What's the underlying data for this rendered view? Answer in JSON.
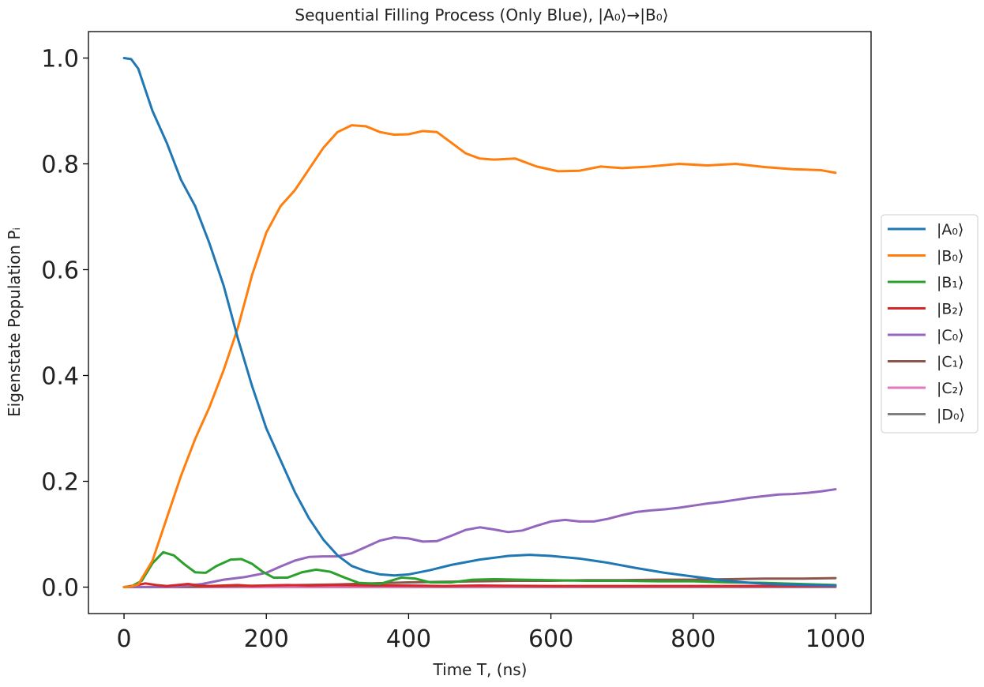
{
  "chart_data": {
    "type": "line",
    "title": "Sequential Filling Process (Only Blue), |A₀⟩→|B₀⟩",
    "xlabel": "Time T, (ns)",
    "ylabel": "Eigenstate Population Pᵢ",
    "xlim": [
      -50,
      1050
    ],
    "ylim": [
      -0.05,
      1.05
    ],
    "xticks": [
      0,
      200,
      400,
      600,
      800,
      1000
    ],
    "yticks": [
      0.0,
      0.2,
      0.4,
      0.6,
      0.8,
      1.0
    ],
    "xtick_labels": [
      "0",
      "200",
      "400",
      "600",
      "800",
      "1000"
    ],
    "ytick_labels": [
      "0.0",
      "0.2",
      "0.4",
      "0.6",
      "0.8",
      "1.0"
    ],
    "grid": false,
    "legend_position": "right, outside plot area",
    "series": [
      {
        "name": "|A₀⟩",
        "color": "#1f77b4",
        "points": [
          [
            0,
            1.0
          ],
          [
            10,
            0.998
          ],
          [
            20,
            0.98
          ],
          [
            40,
            0.9
          ],
          [
            60,
            0.84
          ],
          [
            80,
            0.77
          ],
          [
            100,
            0.72
          ],
          [
            120,
            0.65
          ],
          [
            140,
            0.57
          ],
          [
            160,
            0.47
          ],
          [
            180,
            0.38
          ],
          [
            200,
            0.3
          ],
          [
            220,
            0.24
          ],
          [
            240,
            0.18
          ],
          [
            260,
            0.13
          ],
          [
            280,
            0.09
          ],
          [
            300,
            0.06
          ],
          [
            320,
            0.04
          ],
          [
            340,
            0.03
          ],
          [
            360,
            0.024
          ],
          [
            380,
            0.022
          ],
          [
            400,
            0.024
          ],
          [
            430,
            0.032
          ],
          [
            460,
            0.042
          ],
          [
            500,
            0.052
          ],
          [
            540,
            0.059
          ],
          [
            570,
            0.061
          ],
          [
            600,
            0.059
          ],
          [
            640,
            0.054
          ],
          [
            680,
            0.046
          ],
          [
            720,
            0.036
          ],
          [
            760,
            0.027
          ],
          [
            800,
            0.02
          ],
          [
            840,
            0.013
          ],
          [
            880,
            0.008
          ],
          [
            920,
            0.005
          ],
          [
            960,
            0.004
          ],
          [
            1000,
            0.003
          ]
        ]
      },
      {
        "name": "|B₀⟩",
        "color": "#ff7f0e",
        "points": [
          [
            0,
            0.0
          ],
          [
            10,
            0.001
          ],
          [
            20,
            0.005
          ],
          [
            40,
            0.05
          ],
          [
            60,
            0.13
          ],
          [
            80,
            0.21
          ],
          [
            100,
            0.28
          ],
          [
            120,
            0.34
          ],
          [
            140,
            0.41
          ],
          [
            160,
            0.49
          ],
          [
            180,
            0.59
          ],
          [
            200,
            0.67
          ],
          [
            220,
            0.72
          ],
          [
            240,
            0.75
          ],
          [
            260,
            0.79
          ],
          [
            280,
            0.83
          ],
          [
            300,
            0.86
          ],
          [
            320,
            0.873
          ],
          [
            340,
            0.871
          ],
          [
            360,
            0.86
          ],
          [
            380,
            0.855
          ],
          [
            400,
            0.856
          ],
          [
            420,
            0.862
          ],
          [
            440,
            0.86
          ],
          [
            460,
            0.84
          ],
          [
            480,
            0.82
          ],
          [
            500,
            0.81
          ],
          [
            520,
            0.808
          ],
          [
            550,
            0.81
          ],
          [
            580,
            0.795
          ],
          [
            610,
            0.786
          ],
          [
            640,
            0.787
          ],
          [
            670,
            0.795
          ],
          [
            700,
            0.792
          ],
          [
            740,
            0.795
          ],
          [
            780,
            0.8
          ],
          [
            820,
            0.797
          ],
          [
            860,
            0.8
          ],
          [
            900,
            0.794
          ],
          [
            940,
            0.79
          ],
          [
            980,
            0.788
          ],
          [
            1000,
            0.783
          ]
        ]
      },
      {
        "name": "|B₁⟩",
        "color": "#2ca02c",
        "points": [
          [
            0,
            0.0
          ],
          [
            10,
            0.001
          ],
          [
            25,
            0.012
          ],
          [
            40,
            0.045
          ],
          [
            55,
            0.066
          ],
          [
            70,
            0.06
          ],
          [
            85,
            0.043
          ],
          [
            100,
            0.028
          ],
          [
            115,
            0.027
          ],
          [
            130,
            0.04
          ],
          [
            150,
            0.052
          ],
          [
            165,
            0.053
          ],
          [
            180,
            0.044
          ],
          [
            195,
            0.029
          ],
          [
            210,
            0.018
          ],
          [
            230,
            0.018
          ],
          [
            250,
            0.028
          ],
          [
            270,
            0.033
          ],
          [
            290,
            0.029
          ],
          [
            310,
            0.018
          ],
          [
            330,
            0.008
          ],
          [
            360,
            0.006
          ],
          [
            390,
            0.018
          ],
          [
            410,
            0.016
          ],
          [
            430,
            0.009
          ],
          [
            460,
            0.009
          ],
          [
            490,
            0.014
          ],
          [
            520,
            0.015
          ],
          [
            560,
            0.014
          ],
          [
            600,
            0.013
          ],
          [
            650,
            0.012
          ],
          [
            700,
            0.012
          ],
          [
            750,
            0.011
          ],
          [
            800,
            0.011
          ],
          [
            850,
            0.009
          ],
          [
            900,
            0.008
          ],
          [
            950,
            0.006
          ],
          [
            1000,
            0.004
          ]
        ]
      },
      {
        "name": "|B₂⟩",
        "color": "#d62728",
        "points": [
          [
            0,
            0.0
          ],
          [
            15,
            0.003
          ],
          [
            30,
            0.007
          ],
          [
            45,
            0.004
          ],
          [
            60,
            0.002
          ],
          [
            75,
            0.004
          ],
          [
            90,
            0.006
          ],
          [
            105,
            0.003
          ],
          [
            120,
            0.002
          ],
          [
            140,
            0.003
          ],
          [
            160,
            0.004
          ],
          [
            180,
            0.002
          ],
          [
            200,
            0.003
          ],
          [
            230,
            0.004
          ],
          [
            260,
            0.003
          ],
          [
            300,
            0.004
          ],
          [
            350,
            0.003
          ],
          [
            400,
            0.003
          ],
          [
            450,
            0.002
          ],
          [
            500,
            0.003
          ],
          [
            600,
            0.002
          ],
          [
            700,
            0.002
          ],
          [
            800,
            0.002
          ],
          [
            900,
            0.002
          ],
          [
            1000,
            0.002
          ]
        ]
      },
      {
        "name": "|C₀⟩",
        "color": "#9467bd",
        "points": [
          [
            0,
            0.0
          ],
          [
            60,
            0.0
          ],
          [
            90,
            0.003
          ],
          [
            110,
            0.006
          ],
          [
            140,
            0.014
          ],
          [
            170,
            0.019
          ],
          [
            200,
            0.027
          ],
          [
            220,
            0.039
          ],
          [
            240,
            0.05
          ],
          [
            260,
            0.057
          ],
          [
            280,
            0.058
          ],
          [
            300,
            0.058
          ],
          [
            320,
            0.064
          ],
          [
            340,
            0.076
          ],
          [
            360,
            0.088
          ],
          [
            380,
            0.094
          ],
          [
            400,
            0.092
          ],
          [
            420,
            0.086
          ],
          [
            440,
            0.087
          ],
          [
            460,
            0.097
          ],
          [
            480,
            0.108
          ],
          [
            500,
            0.113
          ],
          [
            520,
            0.109
          ],
          [
            540,
            0.104
          ],
          [
            560,
            0.107
          ],
          [
            580,
            0.116
          ],
          [
            600,
            0.124
          ],
          [
            620,
            0.127
          ],
          [
            640,
            0.124
          ],
          [
            660,
            0.124
          ],
          [
            680,
            0.129
          ],
          [
            700,
            0.136
          ],
          [
            720,
            0.142
          ],
          [
            740,
            0.145
          ],
          [
            760,
            0.147
          ],
          [
            780,
            0.15
          ],
          [
            800,
            0.154
          ],
          [
            820,
            0.158
          ],
          [
            840,
            0.161
          ],
          [
            860,
            0.165
          ],
          [
            880,
            0.169
          ],
          [
            900,
            0.172
          ],
          [
            920,
            0.175
          ],
          [
            940,
            0.176
          ],
          [
            960,
            0.178
          ],
          [
            980,
            0.181
          ],
          [
            1000,
            0.185
          ]
        ]
      },
      {
        "name": "|C₁⟩",
        "color": "#8c564b",
        "points": [
          [
            0,
            0.0
          ],
          [
            100,
            0.001
          ],
          [
            200,
            0.003
          ],
          [
            300,
            0.005
          ],
          [
            350,
            0.007
          ],
          [
            400,
            0.009
          ],
          [
            450,
            0.01
          ],
          [
            500,
            0.011
          ],
          [
            550,
            0.012
          ],
          [
            600,
            0.012
          ],
          [
            650,
            0.013
          ],
          [
            700,
            0.013
          ],
          [
            750,
            0.014
          ],
          [
            800,
            0.014
          ],
          [
            850,
            0.015
          ],
          [
            900,
            0.016
          ],
          [
            950,
            0.016
          ],
          [
            1000,
            0.017
          ]
        ]
      },
      {
        "name": "|C₂⟩",
        "color": "#e377c2",
        "points": [
          [
            0,
            0.0
          ],
          [
            200,
            0.0
          ],
          [
            400,
            0.0005
          ],
          [
            600,
            0.0008
          ],
          [
            800,
            0.001
          ],
          [
            1000,
            0.0012
          ]
        ]
      },
      {
        "name": "|D₀⟩",
        "color": "#7f7f7f",
        "points": [
          [
            0,
            0.0
          ],
          [
            1000,
            0.0
          ]
        ]
      }
    ]
  }
}
